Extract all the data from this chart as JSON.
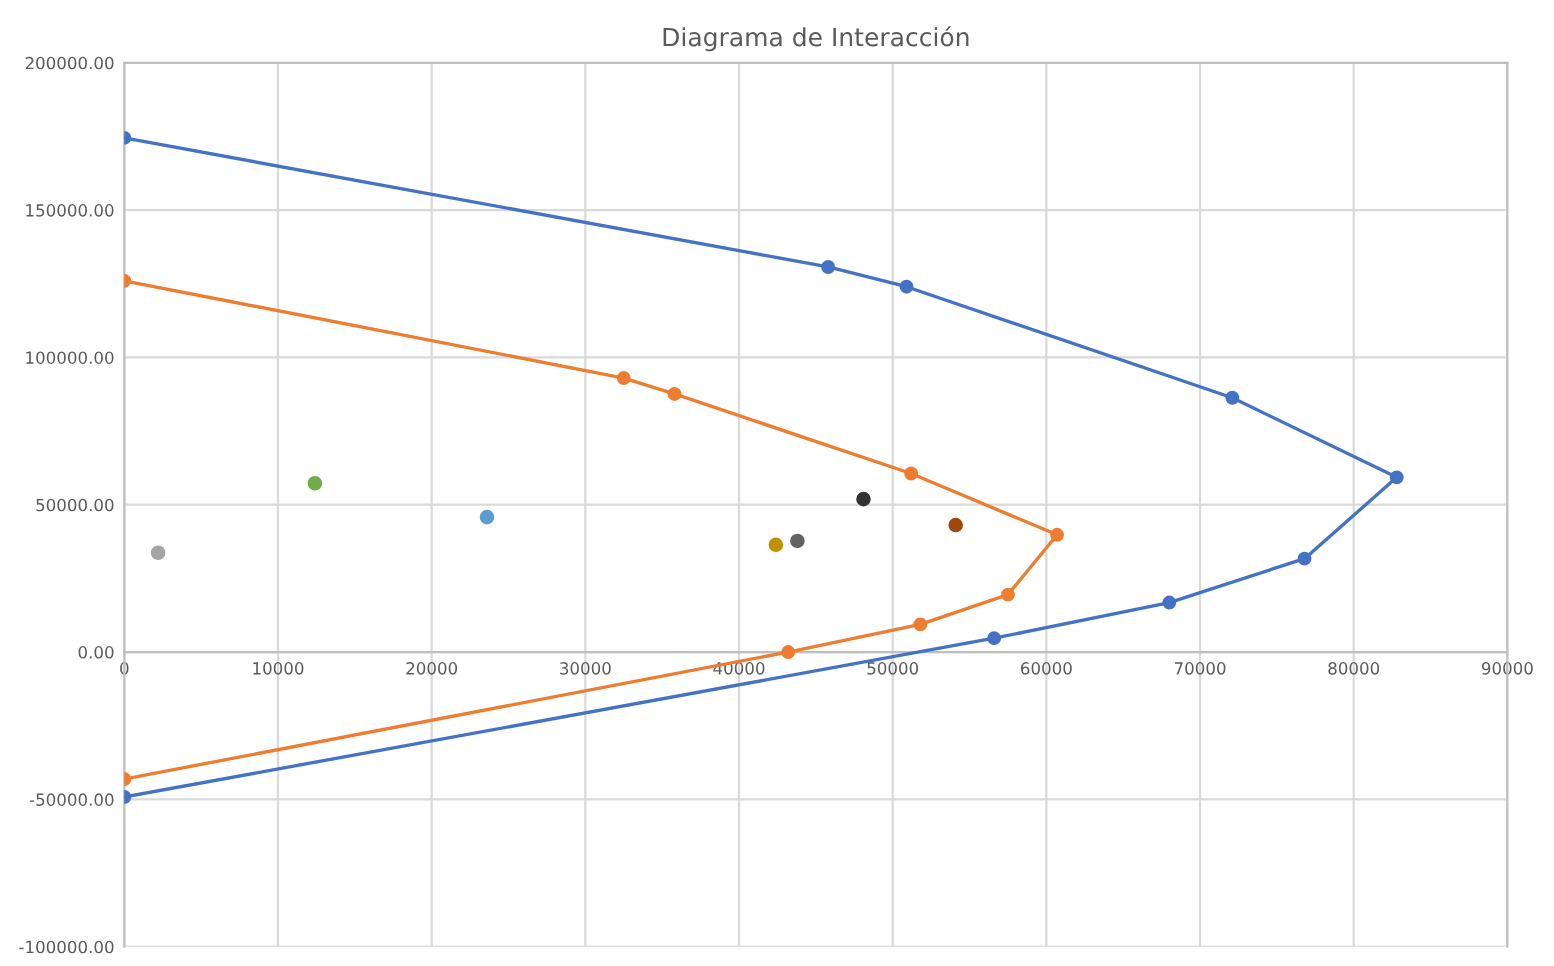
{
  "chart_data": {
    "type": "scatter",
    "title": "Diagrama de Interacción",
    "grid": true,
    "marker": "circle",
    "xlim": [
      0,
      90000
    ],
    "xticks": [
      0,
      10000,
      20000,
      30000,
      40000,
      50000,
      60000,
      70000,
      80000,
      90000
    ],
    "ylim": [
      -100000,
      200000
    ],
    "yticks": [
      {
        "value": -100000,
        "label": "-100000.00"
      },
      {
        "value": -50000,
        "label": "-50000.00"
      },
      {
        "value": 0,
        "label": "0.00"
      },
      {
        "value": 50000,
        "label": "50000.00"
      },
      {
        "value": 100000,
        "label": "100000.00"
      },
      {
        "value": 150000,
        "label": "150000.00"
      },
      {
        "value": 200000,
        "label": "200000.00"
      }
    ],
    "series": [
      {
        "type": "line",
        "color": "#4472c4",
        "x": [
          0,
          45800,
          50900,
          72100,
          82800,
          76800,
          68000,
          56600,
          0
        ],
        "values": [
          174500,
          130700,
          124000,
          86300,
          59300,
          31700,
          16800,
          4700,
          -49200
        ]
      },
      {
        "type": "line",
        "color": "#ed7d31",
        "x": [
          0,
          32500,
          35800,
          51200,
          60700,
          57500,
          51800,
          43200,
          0
        ],
        "values": [
          126000,
          93000,
          87600,
          60600,
          39800,
          19500,
          9400,
          0,
          -43100
        ]
      },
      {
        "color": "#a5a5a5",
        "x": [
          2200
        ],
        "values": [
          33700
        ]
      },
      {
        "color": "#70ad47",
        "x": [
          12400
        ],
        "values": [
          57300
        ]
      },
      {
        "color": "#5b9bd5",
        "x": [
          23600
        ],
        "values": [
          45800
        ]
      },
      {
        "color": "#bf9000",
        "x": [
          42400
        ],
        "values": [
          36400
        ]
      },
      {
        "color": "#636363",
        "x": [
          43800
        ],
        "values": [
          37700
        ]
      },
      {
        "color": "#333333",
        "x": [
          48100
        ],
        "values": [
          51900
        ]
      },
      {
        "color": "#9e480e",
        "x": [
          54100
        ],
        "values": [
          43100
        ]
      }
    ]
  }
}
